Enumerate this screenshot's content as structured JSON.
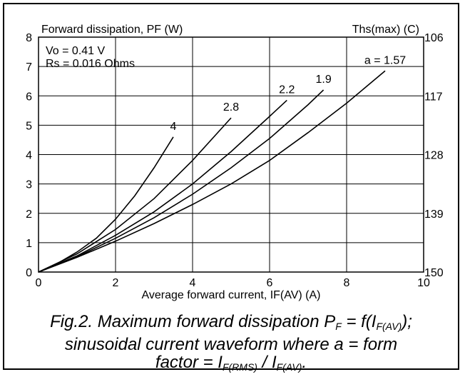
{
  "chart_data": {
    "type": "line",
    "title": "Forward dissipation, PF (W)",
    "xlabel": "Average forward current, IF(AV) (A)",
    "ylabel": "Forward dissipation, PF (W)",
    "y2label": "Ths(max) (C)",
    "xlim": [
      0,
      10
    ],
    "ylim": [
      0,
      8
    ],
    "x_ticks": [
      "0",
      "2",
      "4",
      "6",
      "8",
      "10"
    ],
    "y_ticks": [
      "0",
      "1",
      "2",
      "3",
      "4",
      "5",
      "6",
      "7",
      "8"
    ],
    "y2_ticks": [
      "150",
      "139",
      "128",
      "117",
      "106"
    ],
    "grid": true,
    "annotations": [
      "Vo = 0.41 V",
      "Rs = 0.016 Ohms"
    ],
    "series": [
      {
        "name": "4",
        "x": [
          0,
          0.5,
          1,
          1.5,
          2,
          2.5,
          3,
          3.5
        ],
        "y": [
          0,
          0.3,
          0.68,
          1.15,
          1.8,
          2.6,
          3.55,
          4.6
        ]
      },
      {
        "name": "2.8",
        "x": [
          0,
          1,
          2,
          3,
          4,
          5
        ],
        "y": [
          0,
          0.62,
          1.45,
          2.5,
          3.8,
          5.25
        ]
      },
      {
        "name": "2.2",
        "x": [
          0,
          1,
          2,
          3,
          4,
          5,
          6,
          6.45
        ],
        "y": [
          0,
          0.55,
          1.25,
          2.05,
          3.0,
          4.1,
          5.3,
          5.85
        ]
      },
      {
        "name": "1.9",
        "x": [
          0,
          1,
          2,
          3,
          4,
          5,
          6,
          7,
          7.4
        ],
        "y": [
          0,
          0.52,
          1.15,
          1.85,
          2.65,
          3.55,
          4.55,
          5.7,
          6.2
        ]
      },
      {
        "name": "a = 1.57",
        "x": [
          0,
          1,
          2,
          3,
          4,
          5,
          6,
          7,
          8,
          9
        ],
        "y": [
          0,
          0.5,
          1.05,
          1.65,
          2.3,
          3.0,
          3.8,
          4.75,
          5.75,
          6.85
        ]
      }
    ]
  },
  "caption": {
    "line1_pre": "Fig.2.   Maximum forward dissipation P",
    "line1_sub1": "F",
    "line1_mid": " = f(I",
    "line1_sub2": "F(AV)",
    "line1_post": ");",
    "line2": "sinusoidal current waveform where a = form",
    "line3_pre": "factor = I",
    "line3_sub1": "F(RMS)",
    "line3_mid": " / I",
    "line3_sub2": "F(AV)",
    "line3_post": "."
  }
}
